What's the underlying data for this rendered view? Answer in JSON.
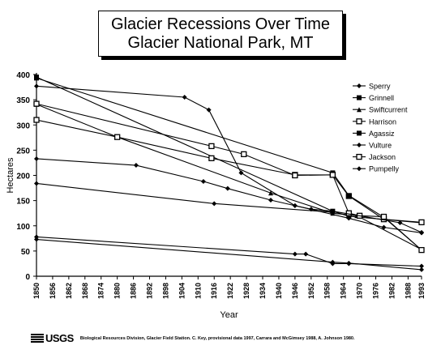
{
  "chart_data": {
    "type": "line",
    "title": "Glacier Recessions Over Time",
    "subtitle": "Glacier National Park, MT",
    "xlabel": "Year",
    "ylabel": "Hectares",
    "xlim": [
      1850,
      1993
    ],
    "ylim": [
      0,
      400
    ],
    "x_ticks": [
      1850,
      1856,
      1862,
      1868,
      1874,
      1880,
      1886,
      1892,
      1898,
      1904,
      1910,
      1916,
      1922,
      1928,
      1934,
      1940,
      1946,
      1952,
      1958,
      1964,
      1970,
      1976,
      1982,
      1988,
      1993
    ],
    "y_ticks": [
      0,
      50,
      100,
      150,
      200,
      250,
      300,
      350,
      400
    ],
    "grid": false,
    "legend_position": "top-right",
    "series": [
      {
        "name": "Sperry",
        "marker": "diamond",
        "points": [
          [
            1850,
            377
          ],
          [
            1905,
            355
          ],
          [
            1914,
            330
          ],
          [
            1926,
            205
          ],
          [
            1946,
            140
          ],
          [
            1966,
            115
          ],
          [
            1979,
            97
          ],
          [
            1993,
            86
          ]
        ]
      },
      {
        "name": "Grinnell",
        "marker": "square",
        "points": [
          [
            1850,
            395
          ],
          [
            1960,
            129
          ],
          [
            1966,
            119
          ],
          [
            1993,
            106
          ]
        ]
      },
      {
        "name": "Swiftcurrent",
        "marker": "triangle",
        "points": [
          [
            1850,
            341
          ],
          [
            1880,
            276
          ],
          [
            1937,
            165
          ],
          [
            1960,
            125
          ],
          [
            1969,
            120
          ],
          [
            1993,
            53
          ]
        ]
      },
      {
        "name": "Harrison",
        "marker": "open-square",
        "points": [
          [
            1850,
            310
          ],
          [
            1880,
            276
          ],
          [
            1915,
            234
          ],
          [
            1946,
            201
          ],
          [
            1960,
            201
          ],
          [
            1966,
            159
          ],
          [
            1979,
            113
          ],
          [
            1993,
            107
          ]
        ]
      },
      {
        "name": "Agassiz",
        "marker": "square",
        "points": [
          [
            1850,
            393
          ],
          [
            1960,
            205
          ],
          [
            1966,
            160
          ],
          [
            1979,
            117
          ],
          [
            1993,
            52
          ]
        ]
      },
      {
        "name": "Vulture",
        "marker": "diamond",
        "points": [
          [
            1850,
            78
          ],
          [
            1946,
            44
          ],
          [
            1950,
            44
          ],
          [
            1960,
            25
          ],
          [
            1966,
            25
          ],
          [
            1993,
            20
          ]
        ]
      },
      {
        "name": "Jackson",
        "marker": "open-square",
        "points": [
          [
            1850,
            342
          ],
          [
            1915,
            258
          ],
          [
            1927,
            242
          ],
          [
            1946,
            200
          ],
          [
            1960,
            201
          ],
          [
            1966,
            125
          ],
          [
            1970,
            120
          ],
          [
            1979,
            118
          ],
          [
            1993,
            52
          ]
        ]
      },
      {
        "name": "Pumpelly",
        "marker": "diamond",
        "points": [
          [
            1850,
            233
          ],
          [
            1887,
            220
          ],
          [
            1912,
            188
          ],
          [
            1921,
            174
          ],
          [
            1937,
            151
          ],
          [
            1946,
            140
          ],
          [
            1952,
            133
          ],
          [
            1960,
            129
          ],
          [
            1985,
            106
          ],
          [
            1993,
            87
          ],
          [
            1850,
            184
          ],
          [
            1916,
            144
          ],
          [
            1960,
            127
          ],
          [
            1850,
            73
          ],
          [
            1960,
            28
          ],
          [
            1966,
            26
          ],
          [
            1993,
            13
          ]
        ]
      }
    ]
  },
  "footer": {
    "logo_text": "USGS",
    "credit": "Biological Resources Division, Glacier Field Station.  C. Key, provisional data 1997, Carrara and McGimsey 1988, A. Johnson 1980."
  }
}
